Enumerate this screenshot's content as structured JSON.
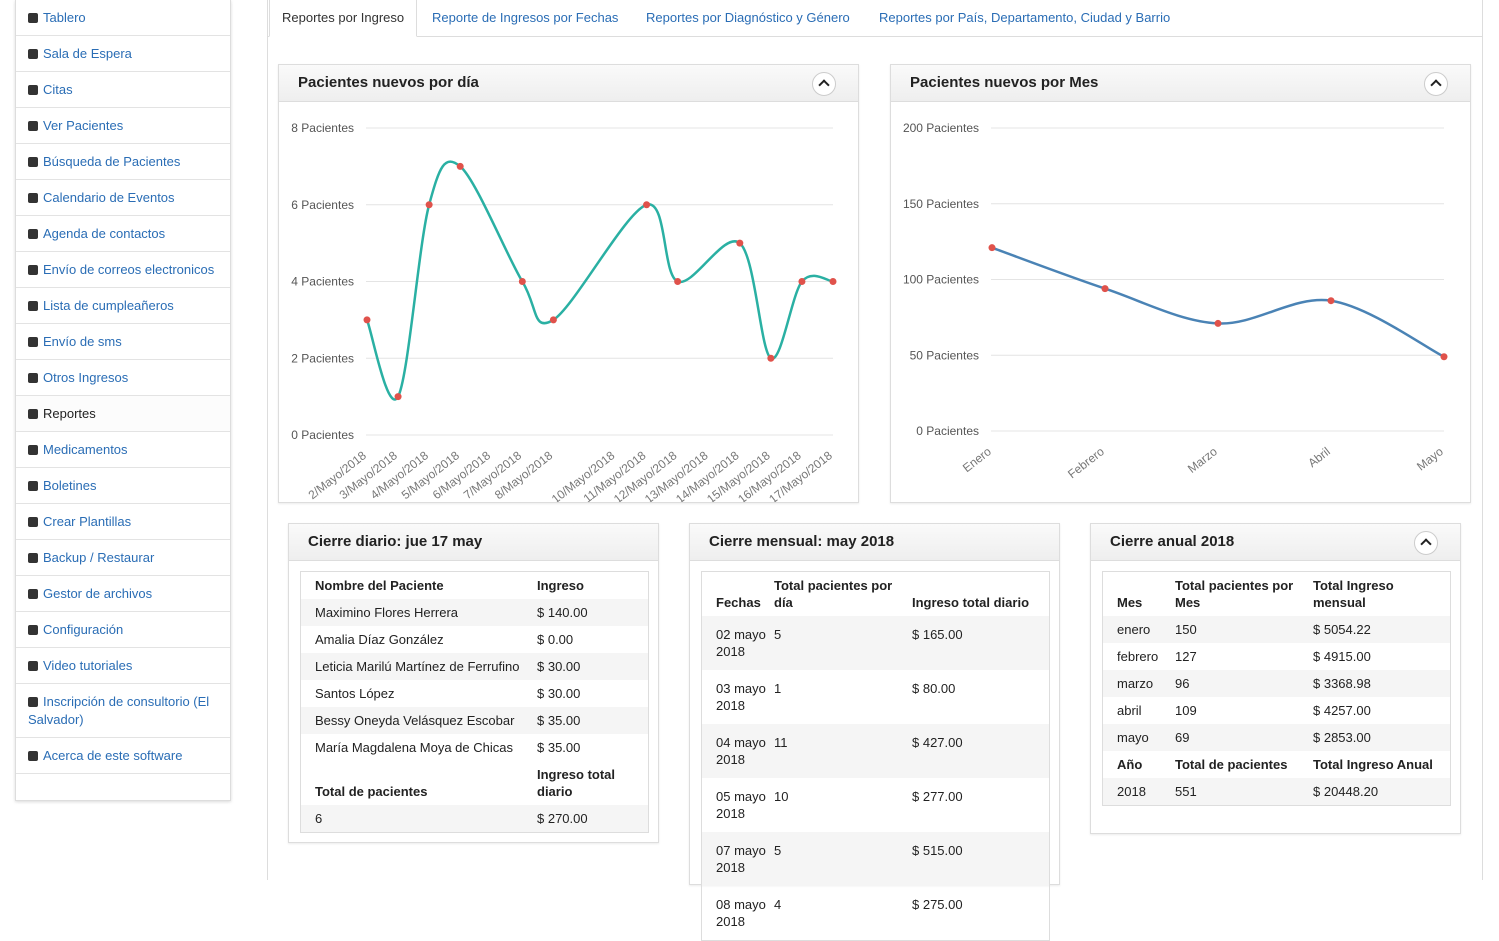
{
  "sidebar": [
    "Tablero",
    "Sala de Espera",
    "Citas",
    "Ver Pacientes",
    "Búsqueda de Pacientes",
    "Calendario de Eventos",
    "Agenda de contactos",
    "Envío de correos electronicos",
    "Lista de cumpleañeros",
    "Envío de sms",
    "Otros Ingresos",
    "Reportes",
    "Medicamentos",
    "Boletines",
    "Crear Plantillas",
    "Backup / Restaurar",
    "Gestor de archivos",
    "Configuración",
    "Video tutoriales",
    "Inscripción de consultorio (El Salvador)",
    "Acerca de este software"
  ],
  "tabs": [
    "Reportes por Ingreso",
    "Reporte de Ingresos por Fechas",
    "Reportes por Diagnóstico y Género",
    "Reportes por País, Departamento, Ciudad y Barrio"
  ],
  "chart_data": [
    {
      "type": "line",
      "title": "Pacientes nuevos por día",
      "categories": [
        "2/Mayo/2018",
        "3/Mayo/2018",
        "4/Mayo/2018",
        "5/Mayo/2018",
        "6/Mayo/2018",
        "7/Mayo/2018",
        "8/Mayo/2018",
        null,
        "10/Mayo/2018",
        "11/Mayo/2018",
        "12/Mayo/2018",
        "13/Mayo/2018",
        "14/Mayo/2018",
        "15/Mayo/2018",
        "16/Mayo/2018",
        "17/Mayo/2018"
      ],
      "values": [
        3,
        1,
        6,
        7,
        null,
        4,
        3,
        null,
        null,
        6,
        4,
        null,
        5,
        2,
        4,
        4
      ],
      "color": "#2ab0a3",
      "point_color": "#e0524b",
      "ylim": [
        0,
        8
      ],
      "yticks": [
        {
          "value": 0,
          "label": "0 Pacientes"
        },
        {
          "value": 2,
          "label": "2 Pacientes"
        },
        {
          "value": 4,
          "label": "4 Pacientes"
        },
        {
          "value": 6,
          "label": "6 Pacientes"
        },
        {
          "value": 8,
          "label": "8 Pacientes"
        }
      ],
      "grid": true
    },
    {
      "type": "line",
      "title": "Pacientes nuevos por Mes",
      "categories": [
        "Enero",
        "Febrero",
        "Marzo",
        "Abril",
        "Mayo"
      ],
      "values": [
        121,
        94,
        71,
        86,
        49
      ],
      "color": "#4a83b5",
      "point_color": "#e0524b",
      "ylim": [
        0,
        200
      ],
      "yticks": [
        {
          "value": 0,
          "label": "0 Pacientes"
        },
        {
          "value": 50,
          "label": "50 Pacientes"
        },
        {
          "value": 100,
          "label": "100 Pacientes"
        },
        {
          "value": 150,
          "label": "150 Pacientes"
        },
        {
          "value": 200,
          "label": "200 Pacientes"
        }
      ],
      "grid": true
    }
  ],
  "tables": [
    {
      "title": "Cierre diario: jue 17 may",
      "columns": [
        "Nombre del Paciente",
        "Ingreso"
      ],
      "rows": [
        [
          "Maximino Flores Herrera",
          "$ 140.00"
        ],
        [
          "Amalia Díaz González",
          "$ 0.00"
        ],
        [
          "Leticia Marilú Martínez de Ferrufino",
          "$ 30.00"
        ],
        [
          "Santos López",
          "$ 30.00"
        ],
        [
          "Bessy Oneyda Velásquez Escobar",
          "$ 35.00"
        ],
        [
          "María Magdalena Moya de Chicas",
          "$ 35.00"
        ]
      ],
      "footer_columns": [
        "Total de pacientes",
        "Ingreso total diario"
      ],
      "footer_rows": [
        [
          "6",
          "$ 270.00"
        ]
      ]
    },
    {
      "title": "Cierre mensual: may 2018",
      "columns": [
        "Fechas",
        "Total pacientes por día",
        "Ingreso total diario"
      ],
      "rows": [
        [
          "02 mayo 2018",
          "5",
          "$ 165.00"
        ],
        [
          "03 mayo 2018",
          "1",
          "$ 80.00"
        ],
        [
          "04 mayo 2018",
          "11",
          "$ 427.00"
        ],
        [
          "05 mayo 2018",
          "10",
          "$ 277.00"
        ],
        [
          "07 mayo 2018",
          "5",
          "$ 515.00"
        ],
        [
          "08 mayo 2018",
          "4",
          "$ 275.00"
        ]
      ]
    },
    {
      "title": "Cierre anual 2018",
      "columns": [
        "Mes",
        "Total pacientes por Mes",
        "Total Ingreso mensual"
      ],
      "rows": [
        [
          "enero",
          "150",
          "$ 5054.22"
        ],
        [
          "febrero",
          "127",
          "$ 4915.00"
        ],
        [
          "marzo",
          "96",
          "$ 3368.98"
        ],
        [
          "abril",
          "109",
          "$ 4257.00"
        ],
        [
          "mayo",
          "69",
          "$ 2853.00"
        ]
      ],
      "footer_columns": [
        "Año",
        "Total de pacientes",
        "Total Ingreso Anual"
      ],
      "footer_rows": [
        [
          "2018",
          "551",
          "$ 20448.20"
        ]
      ]
    }
  ]
}
